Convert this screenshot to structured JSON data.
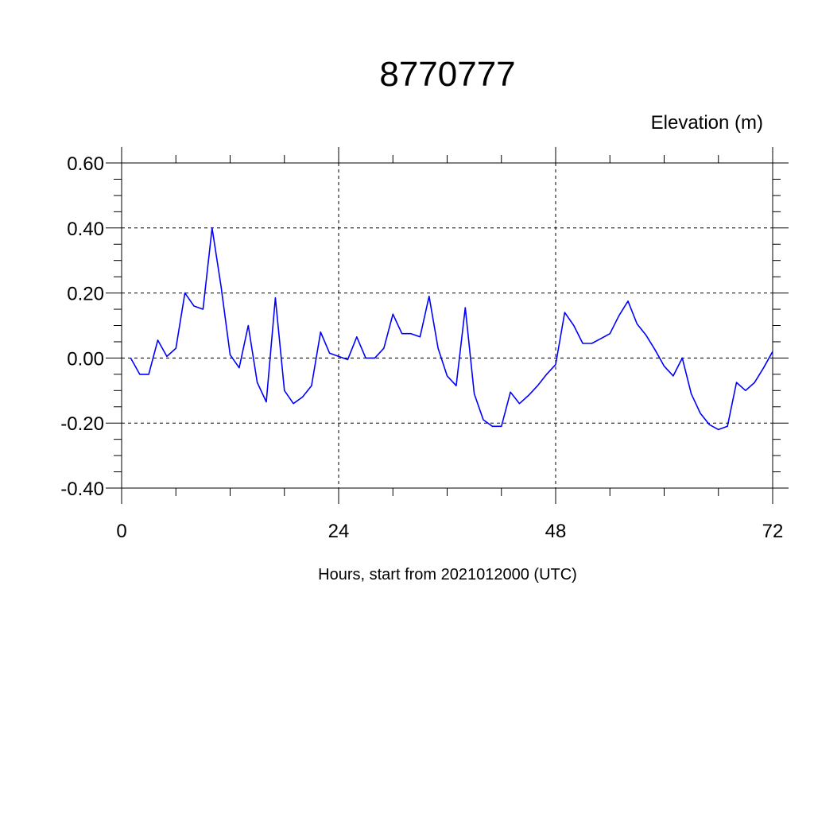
{
  "chart_data": {
    "type": "line",
    "title": "8770777",
    "subtitle": "Elevation (m)",
    "xlabel": "Hours, start from 2021012000 (UTC)",
    "ylabel": "",
    "xlim": [
      0,
      72
    ],
    "ylim": [
      -0.4,
      0.6
    ],
    "x_ticks": [
      0,
      24,
      48,
      72
    ],
    "x_tick_labels": [
      "0",
      "24",
      "48",
      "72"
    ],
    "y_ticks": [
      -0.4,
      -0.2,
      0.0,
      0.2,
      0.4,
      0.6
    ],
    "y_tick_labels": [
      "-0.40",
      "-0.20",
      "0.00",
      "0.20",
      "0.40",
      "0.60"
    ],
    "grid": true,
    "series": [
      {
        "color": "#0000ff",
        "x": [
          1,
          2,
          3,
          4,
          5,
          6,
          7,
          8,
          9,
          10,
          11,
          12,
          13,
          14,
          15,
          16,
          17,
          18,
          19,
          20,
          21,
          22,
          23,
          24,
          25,
          26,
          27,
          28,
          29,
          30,
          31,
          32,
          33,
          34,
          35,
          36,
          37,
          38,
          39,
          40,
          41,
          42,
          43,
          44,
          45,
          46,
          47,
          48,
          49,
          50,
          51,
          52,
          53,
          54,
          55,
          56,
          57,
          58,
          59,
          60,
          61,
          62,
          63,
          64,
          65,
          66,
          67,
          68,
          69,
          70,
          71,
          72
        ],
        "values": [
          0.0,
          -0.05,
          -0.05,
          0.055,
          0.005,
          0.03,
          0.2,
          0.16,
          0.15,
          0.4,
          0.22,
          0.01,
          -0.03,
          0.1,
          -0.075,
          -0.135,
          0.185,
          -0.1,
          -0.14,
          -0.12,
          -0.085,
          0.08,
          0.015,
          0.005,
          -0.005,
          0.065,
          0.0,
          0.0,
          0.03,
          0.135,
          0.075,
          0.075,
          0.065,
          0.19,
          0.03,
          -0.055,
          -0.085,
          0.155,
          -0.11,
          -0.19,
          -0.21,
          -0.21,
          -0.105,
          -0.14,
          -0.115,
          -0.085,
          -0.05,
          -0.02,
          0.14,
          0.1,
          0.045,
          0.045,
          0.06,
          0.075,
          0.13,
          0.175,
          0.105,
          0.07,
          0.025,
          -0.025,
          -0.055,
          0.0,
          -0.11,
          -0.17,
          -0.205,
          -0.22,
          -0.21,
          -0.075,
          -0.1,
          -0.075,
          -0.03,
          0.02
        ]
      }
    ]
  }
}
